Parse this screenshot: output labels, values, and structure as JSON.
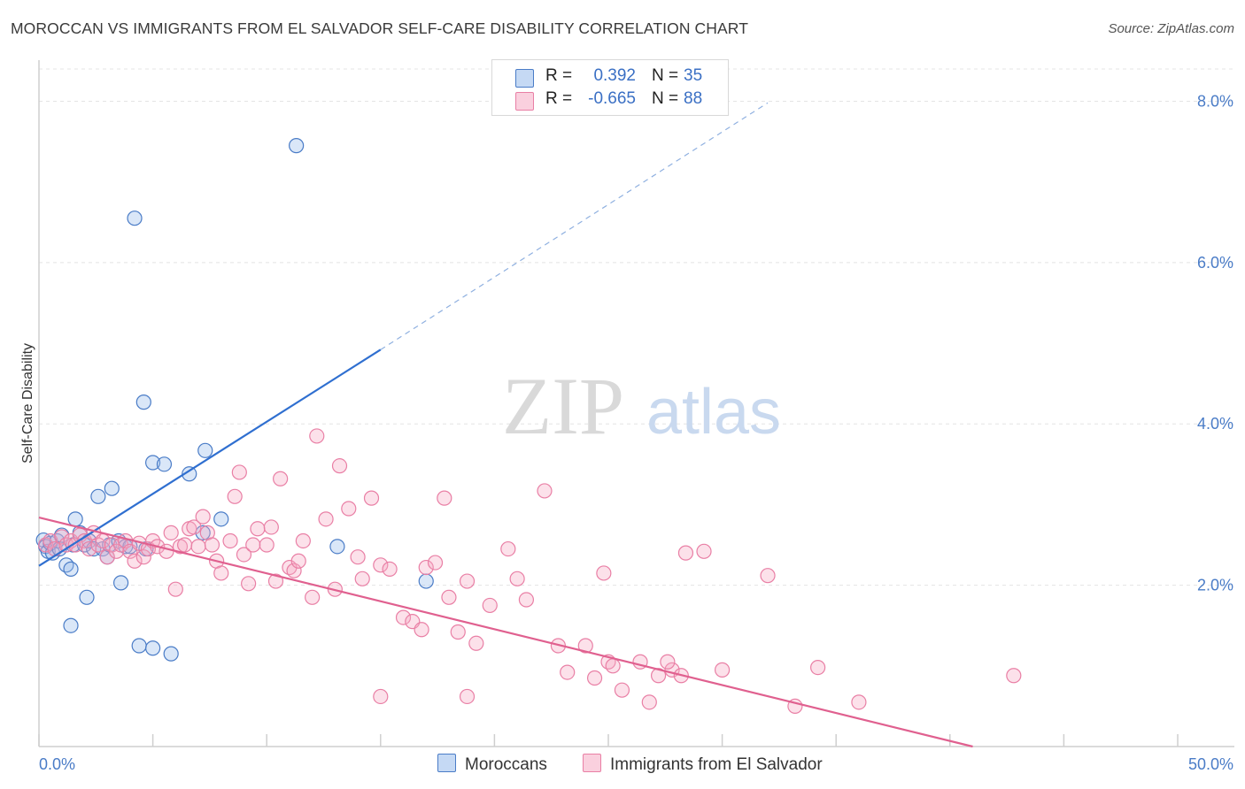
{
  "title": "MOROCCAN VS IMMIGRANTS FROM EL SALVADOR SELF-CARE DISABILITY CORRELATION CHART",
  "source": "Source: ZipAtlas.com",
  "watermark": {
    "zip": "ZIP",
    "atlas": "atlas"
  },
  "colors": {
    "blue": "#4a7cc7",
    "blue_fill": "rgba(150,185,235,0.35)",
    "blue_line": "#2f6fd0",
    "pink": "#e97fa5",
    "pink_fill": "rgba(245,170,195,0.35)",
    "pink_line": "#e0608f",
    "grid": "#e4e4e4"
  },
  "legend_top": [
    {
      "r_label": "R =",
      "r_value": "0.392",
      "n_label": "N =",
      "n_value": "35",
      "color": "blue"
    },
    {
      "r_label": "R =",
      "r_value": "-0.665",
      "n_label": "N =",
      "n_value": "88",
      "color": "pink"
    }
  ],
  "legend_bottom": [
    {
      "label": "Moroccans",
      "color": "blue"
    },
    {
      "label": "Immigrants from El Salvador",
      "color": "pink"
    }
  ],
  "chart_data": {
    "type": "scatter",
    "title": "MOROCCAN VS IMMIGRANTS FROM EL SALVADOR SELF-CARE DISABILITY CORRELATION CHART",
    "xlabel": "",
    "ylabel": "Self-Care Disability",
    "xlim": [
      0,
      50
    ],
    "ylim": [
      0,
      8.4
    ],
    "x_tick_labels": [
      "0.0%",
      "50.0%"
    ],
    "y_ticks": [
      2.0,
      4.0,
      6.0,
      8.0
    ],
    "y_tick_labels": [
      "2.0%",
      "4.0%",
      "6.0%",
      "8.0%"
    ],
    "grid": true,
    "series": [
      {
        "name": "Moroccans",
        "color": "blue",
        "r": 0.392,
        "n": 35,
        "trend": {
          "x0": 0,
          "y0": 2.24,
          "x1": 15,
          "y1": 4.92,
          "dash_x1": 32,
          "dash_y1": 7.98
        },
        "points": [
          [
            0.2,
            2.56
          ],
          [
            0.3,
            2.48
          ],
          [
            0.4,
            2.42
          ],
          [
            0.5,
            2.52
          ],
          [
            0.6,
            2.4
          ],
          [
            0.8,
            2.55
          ],
          [
            0.9,
            2.45
          ],
          [
            1.0,
            2.62
          ],
          [
            1.2,
            2.25
          ],
          [
            1.4,
            2.2
          ],
          [
            1.5,
            2.5
          ],
          [
            1.6,
            2.82
          ],
          [
            1.8,
            2.65
          ],
          [
            2.0,
            2.5
          ],
          [
            2.1,
            1.85
          ],
          [
            2.2,
            2.55
          ],
          [
            2.4,
            2.45
          ],
          [
            2.6,
            3.1
          ],
          [
            2.8,
            2.45
          ],
          [
            3.0,
            2.35
          ],
          [
            3.1,
            2.5
          ],
          [
            3.2,
            3.2
          ],
          [
            3.5,
            2.55
          ],
          [
            3.6,
            2.03
          ],
          [
            3.8,
            2.48
          ],
          [
            4.0,
            2.48
          ],
          [
            1.4,
            1.5
          ],
          [
            4.4,
            1.25
          ],
          [
            5.0,
            1.22
          ],
          [
            4.2,
            6.55
          ],
          [
            4.7,
            2.45
          ],
          [
            5.0,
            3.52
          ],
          [
            5.5,
            3.5
          ],
          [
            5.8,
            1.15
          ],
          [
            6.6,
            3.38
          ],
          [
            7.2,
            2.65
          ],
          [
            7.3,
            3.67
          ],
          [
            8.0,
            2.82
          ],
          [
            4.6,
            4.27
          ],
          [
            13.1,
            2.48
          ],
          [
            17.0,
            2.05
          ],
          [
            11.3,
            7.45
          ]
        ]
      },
      {
        "name": "Immigrants from El Salvador",
        "color": "pink",
        "r": -0.665,
        "n": 88,
        "trend": {
          "x0": 0,
          "y0": 2.84,
          "x1": 41,
          "y1": 0.0
        },
        "points": [
          [
            0.3,
            2.5
          ],
          [
            0.5,
            2.55
          ],
          [
            0.7,
            2.45
          ],
          [
            1.0,
            2.6
          ],
          [
            1.2,
            2.5
          ],
          [
            1.4,
            2.55
          ],
          [
            1.6,
            2.5
          ],
          [
            1.8,
            2.62
          ],
          [
            2.0,
            2.55
          ],
          [
            2.2,
            2.45
          ],
          [
            2.4,
            2.65
          ],
          [
            2.6,
            2.5
          ],
          [
            2.8,
            2.55
          ],
          [
            3.0,
            2.35
          ],
          [
            3.2,
            2.5
          ],
          [
            3.4,
            2.42
          ],
          [
            3.6,
            2.5
          ],
          [
            3.8,
            2.55
          ],
          [
            4.0,
            2.42
          ],
          [
            4.2,
            2.3
          ],
          [
            4.4,
            2.52
          ],
          [
            4.6,
            2.35
          ],
          [
            4.8,
            2.45
          ],
          [
            5.0,
            2.55
          ],
          [
            5.2,
            2.48
          ],
          [
            5.6,
            2.42
          ],
          [
            5.8,
            2.65
          ],
          [
            6.0,
            1.95
          ],
          [
            6.2,
            2.48
          ],
          [
            6.4,
            2.5
          ],
          [
            6.6,
            2.7
          ],
          [
            6.8,
            2.72
          ],
          [
            7.0,
            2.48
          ],
          [
            7.2,
            2.85
          ],
          [
            7.4,
            2.65
          ],
          [
            7.6,
            2.5
          ],
          [
            7.8,
            2.3
          ],
          [
            8.0,
            2.15
          ],
          [
            8.4,
            2.55
          ],
          [
            8.6,
            3.1
          ],
          [
            8.8,
            3.4
          ],
          [
            9.0,
            2.38
          ],
          [
            9.2,
            2.02
          ],
          [
            9.4,
            2.5
          ],
          [
            9.6,
            2.7
          ],
          [
            10.0,
            2.5
          ],
          [
            10.2,
            2.72
          ],
          [
            10.4,
            2.05
          ],
          [
            10.6,
            3.32
          ],
          [
            11.0,
            2.22
          ],
          [
            11.2,
            2.18
          ],
          [
            11.4,
            2.3
          ],
          [
            11.6,
            2.55
          ],
          [
            12.0,
            1.85
          ],
          [
            12.2,
            3.85
          ],
          [
            12.6,
            2.82
          ],
          [
            13.0,
            1.95
          ],
          [
            13.2,
            3.48
          ],
          [
            13.6,
            2.95
          ],
          [
            14.0,
            2.35
          ],
          [
            14.2,
            2.08
          ],
          [
            14.6,
            3.08
          ],
          [
            15.0,
            2.25
          ],
          [
            15.4,
            2.2
          ],
          [
            16.0,
            1.6
          ],
          [
            16.4,
            1.55
          ],
          [
            16.8,
            1.45
          ],
          [
            17.0,
            2.22
          ],
          [
            17.4,
            2.28
          ],
          [
            17.8,
            3.08
          ],
          [
            18.0,
            1.85
          ],
          [
            18.4,
            1.42
          ],
          [
            18.8,
            2.05
          ],
          [
            19.2,
            1.28
          ],
          [
            19.8,
            1.75
          ],
          [
            20.6,
            2.45
          ],
          [
            21.0,
            2.08
          ],
          [
            21.4,
            1.82
          ],
          [
            22.2,
            3.17
          ],
          [
            22.8,
            1.25
          ],
          [
            23.2,
            0.92
          ],
          [
            24.0,
            1.25
          ],
          [
            24.4,
            0.85
          ],
          [
            24.8,
            2.15
          ],
          [
            25.0,
            1.05
          ],
          [
            25.2,
            1.0
          ],
          [
            25.6,
            0.7
          ],
          [
            26.4,
            1.05
          ],
          [
            26.8,
            0.55
          ],
          [
            27.2,
            0.88
          ],
          [
            27.8,
            0.95
          ],
          [
            28.2,
            0.88
          ],
          [
            28.4,
            2.4
          ],
          [
            29.2,
            2.42
          ],
          [
            30.0,
            0.95
          ],
          [
            32.0,
            2.12
          ],
          [
            33.2,
            0.5
          ],
          [
            34.2,
            0.98
          ],
          [
            36.0,
            0.55
          ],
          [
            42.8,
            0.88
          ],
          [
            15.0,
            0.62
          ],
          [
            18.8,
            0.62
          ],
          [
            27.6,
            1.05
          ]
        ]
      }
    ]
  }
}
